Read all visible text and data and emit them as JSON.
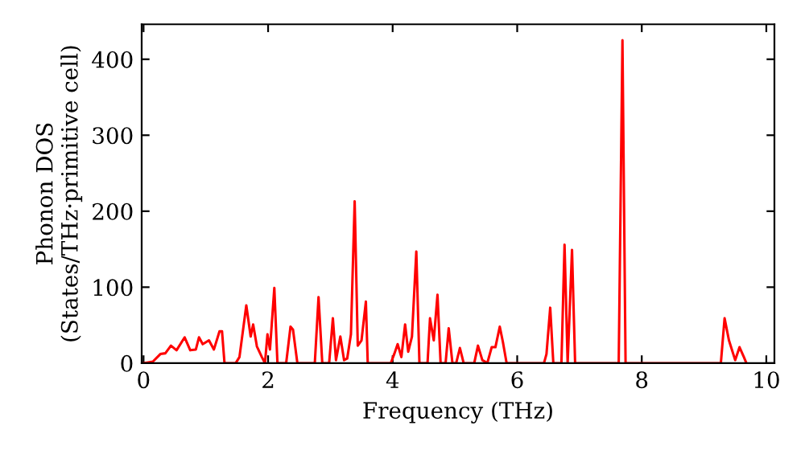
{
  "chart_data": {
    "type": "line",
    "xlabel": "Frequency (THz)",
    "ylabel": "Phonon DOS\n(States/THz·primitive cell)",
    "xlim": [
      -0.03,
      10.13
    ],
    "ylim": [
      0,
      446
    ],
    "xticks": [
      0,
      2,
      4,
      6,
      8,
      10
    ],
    "yticks": [
      0,
      100,
      200,
      300,
      400
    ],
    "grid": false,
    "legend": false,
    "marker": "none",
    "line_style": "solid",
    "series": [
      {
        "color": "#ff0000",
        "x": [
          0,
          0.15,
          0.27,
          0.35,
          0.44,
          0.53,
          0.66,
          0.75,
          0.84,
          0.89,
          0.95,
          1.05,
          1.13,
          1.22,
          1.26,
          1.3,
          1.48,
          1.54,
          1.65,
          1.72,
          1.76,
          1.82,
          1.9,
          1.95,
          1.99,
          2.03,
          2.1,
          2.15,
          2.29,
          2.36,
          2.4,
          2.47,
          2.75,
          2.81,
          2.87,
          2.98,
          3.04,
          3.09,
          3.16,
          3.22,
          3.27,
          3.33,
          3.39,
          3.44,
          3.5,
          3.57,
          3.6,
          3.97,
          4.03,
          4.08,
          4.14,
          4.2,
          4.25,
          4.31,
          4.38,
          4.43,
          4.56,
          4.6,
          4.66,
          4.72,
          4.77,
          4.85,
          4.9,
          4.96,
          5.02,
          5.08,
          5.14,
          5.31,
          5.37,
          5.44,
          5.52,
          5.59,
          5.65,
          5.72,
          5.77,
          5.83,
          6.43,
          6.47,
          6.53,
          6.58,
          6.71,
          6.76,
          6.81,
          6.88,
          6.93,
          7.63,
          7.69,
          7.74,
          9.27,
          9.33,
          9.4,
          9.5,
          9.57,
          9.64,
          9.68
        ],
        "values": [
          0,
          2,
          12,
          13,
          23,
          17,
          34,
          17,
          18,
          34,
          25,
          30,
          18,
          42,
          42,
          0,
          0,
          8,
          76,
          35,
          51,
          22,
          8,
          0,
          38,
          18,
          99,
          0,
          0,
          48,
          44,
          0,
          0,
          87,
          0,
          0,
          59,
          4,
          35,
          4,
          6,
          38,
          213,
          23,
          30,
          81,
          0,
          0,
          13,
          25,
          8,
          51,
          15,
          35,
          147,
          0,
          0,
          59,
          30,
          90,
          0,
          0,
          46,
          0,
          0,
          20,
          0,
          0,
          23,
          4,
          0,
          21,
          21,
          48,
          28,
          0,
          0,
          12,
          73,
          0,
          0,
          156,
          0,
          149,
          0,
          0,
          425,
          0,
          0,
          59,
          30,
          4,
          21,
          8,
          0
        ]
      }
    ]
  }
}
